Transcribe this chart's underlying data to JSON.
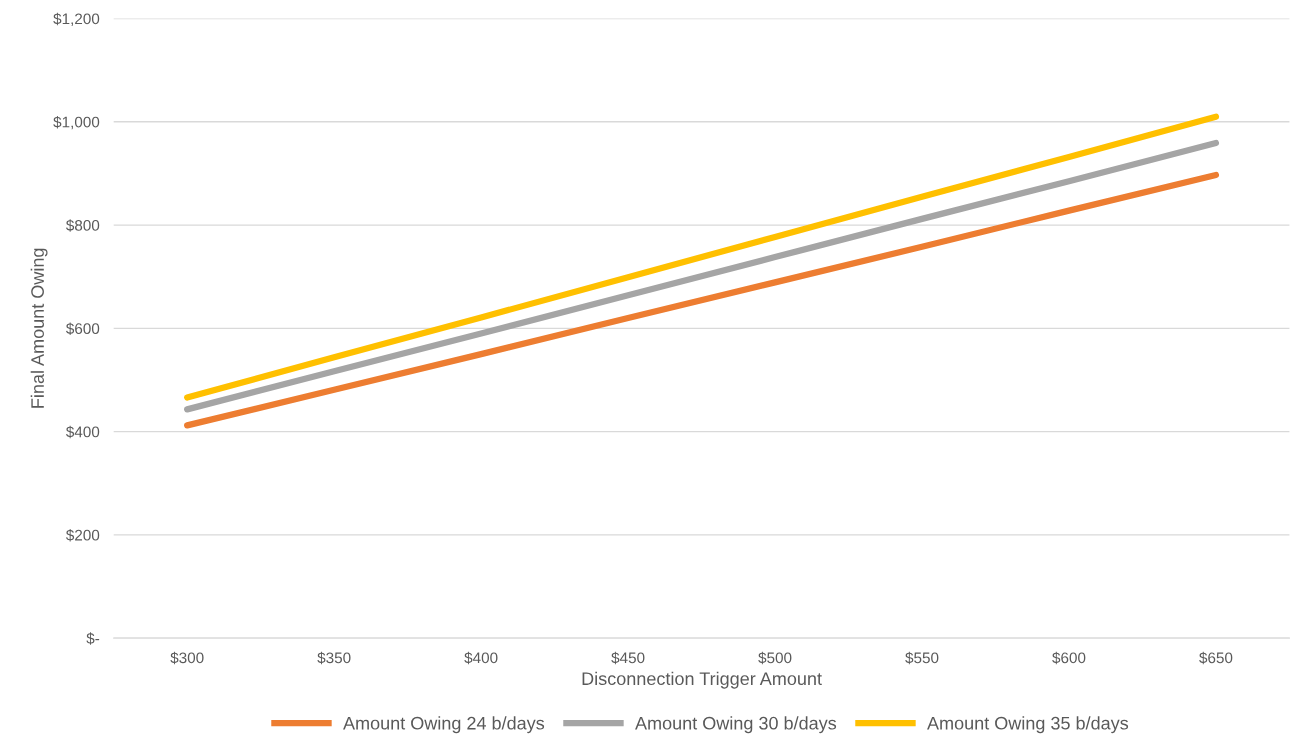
{
  "chart_data": {
    "type": "line",
    "xlabel": "Disconnection Trigger Amount",
    "ylabel": "Final Amount Owing",
    "categories": [
      "$300",
      "$350",
      "$400",
      "$450",
      "$500",
      "$550",
      "$600",
      "$650"
    ],
    "series": [
      {
        "name": "Amount Owing 24 b/days",
        "color": "#ed7d31",
        "values": [
          412,
          481,
          550,
          620,
          689,
          758,
          828,
          897
        ]
      },
      {
        "name": "Amount Owing 30 b/days",
        "color": "#a5a5a5",
        "values": [
          443,
          517,
          590,
          664,
          738,
          812,
          885,
          959
        ]
      },
      {
        "name": "Amount Owing 35 b/days",
        "color": "#ffc000",
        "values": [
          466,
          544,
          621,
          699,
          777,
          855,
          932,
          1010
        ]
      }
    ],
    "ylim": [
      0,
      1200
    ],
    "yticks": [
      {
        "value": 0,
        "label": "$-"
      },
      {
        "value": 200,
        "label": "$200"
      },
      {
        "value": 400,
        "label": "$400"
      },
      {
        "value": 600,
        "label": "$600"
      },
      {
        "value": 800,
        "label": "$800"
      },
      {
        "value": 1000,
        "label": "$1,000"
      },
      {
        "value": 1200,
        "label": "$1,200"
      }
    ],
    "grid": "y",
    "legend": "bottom",
    "marker": "none",
    "line_style": "solid"
  }
}
